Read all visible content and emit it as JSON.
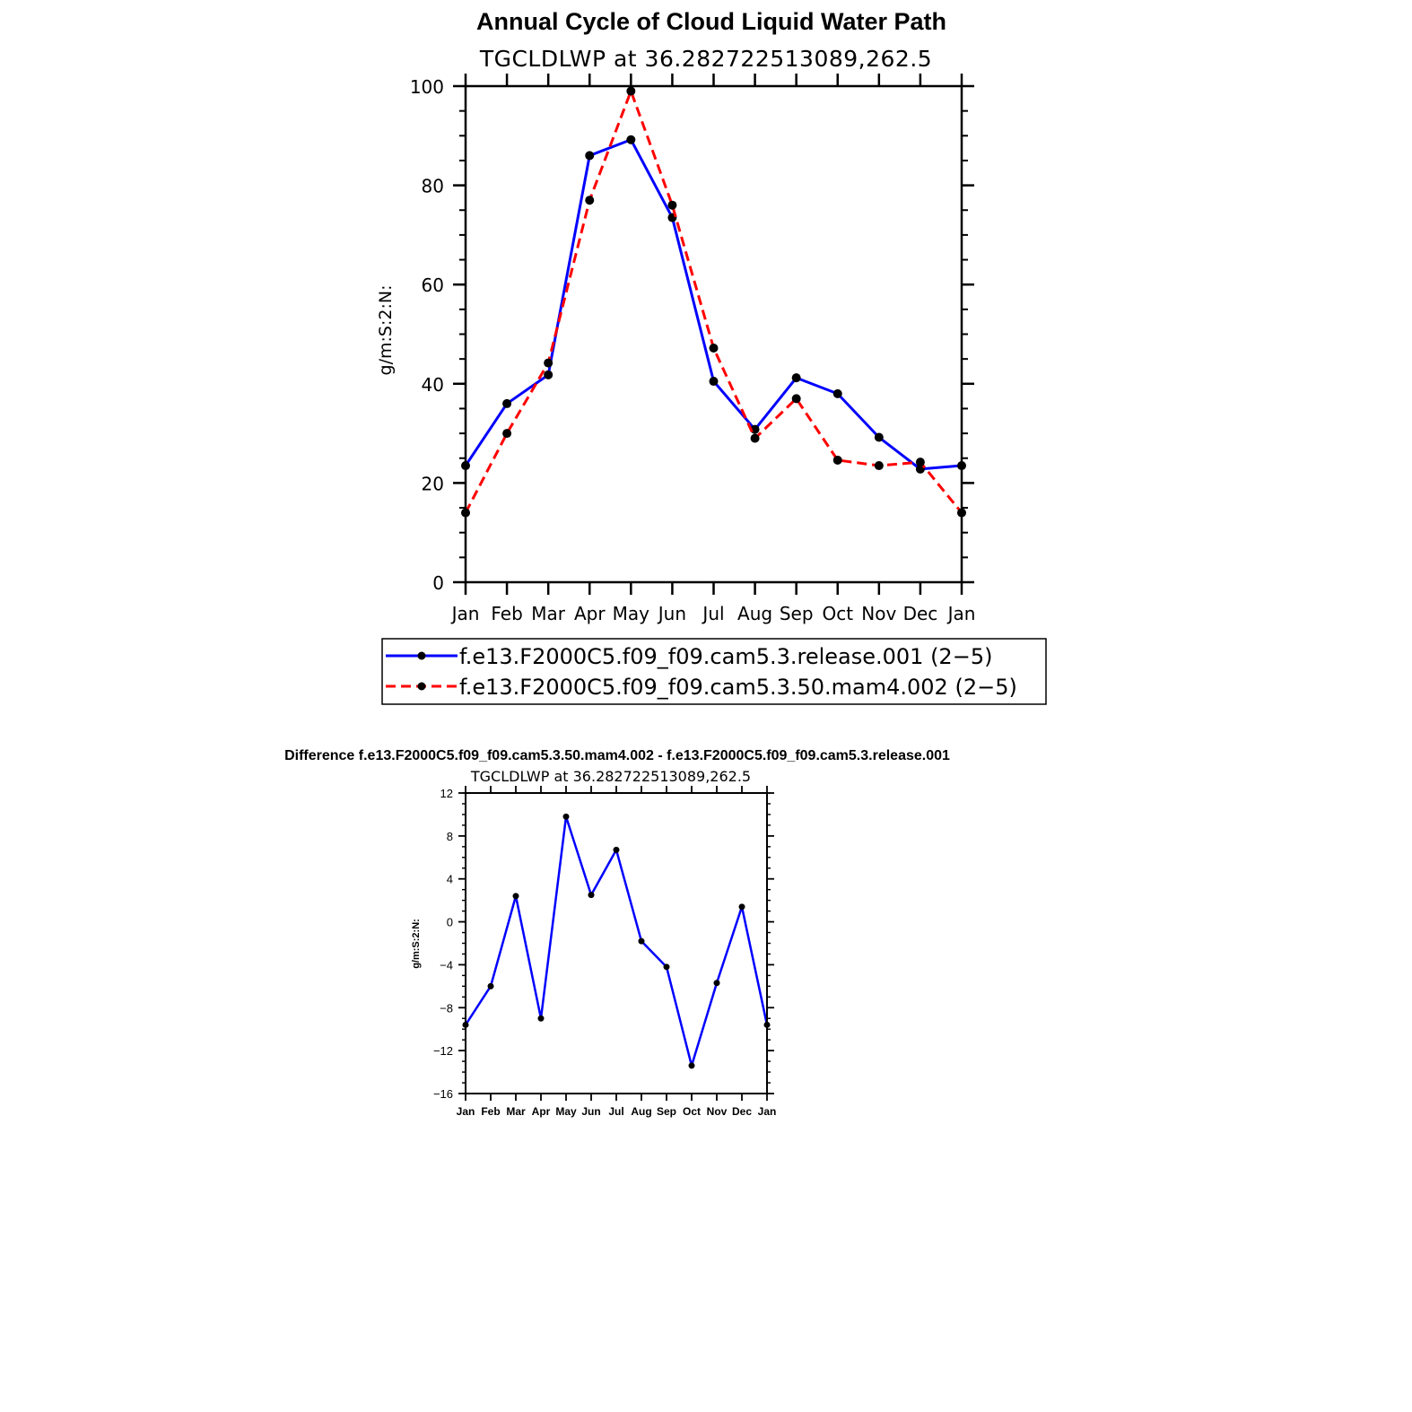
{
  "chart_data": [
    {
      "type": "line",
      "title": "Annual Cycle of Cloud Liquid Water Path",
      "subtitle": "TGCLDLWP  at  36.282722513089,262.5",
      "xlabel": "",
      "ylabel": "g/m:S:2:N:",
      "categories": [
        "Jan",
        "Feb",
        "Mar",
        "Apr",
        "May",
        "Jun",
        "Jul",
        "Aug",
        "Sep",
        "Oct",
        "Nov",
        "Dec",
        "Jan"
      ],
      "ylim": [
        0,
        100
      ],
      "yticks": [
        0,
        20,
        40,
        60,
        80,
        100
      ],
      "ytick_labels": [
        "0",
        "20",
        "40",
        "60",
        "80",
        "100"
      ],
      "grid": false,
      "legend_position": "bottom",
      "series": [
        {
          "name": "f.e13.F2000C5.f09_f09.cam5.3.release.001 (2−5)",
          "color": "#0000ff",
          "dash": "solid",
          "values": [
            23.5,
            36.0,
            41.8,
            86.0,
            89.2,
            73.5,
            40.5,
            30.8,
            41.2,
            38.0,
            29.2,
            22.8,
            23.5
          ]
        },
        {
          "name": "f.e13.F2000C5.f09_f09.cam5.3.50.mam4.002 (2−5)",
          "color": "#ff0000",
          "dash": "dashed",
          "values": [
            14.0,
            30.0,
            44.2,
            77.0,
            99.0,
            76.0,
            47.2,
            29.0,
            37.0,
            24.6,
            23.5,
            24.2,
            14.0
          ]
        }
      ]
    },
    {
      "type": "line",
      "title": "Difference f.e13.F2000C5.f09_f09.cam5.3.50.mam4.002 - f.e13.F2000C5.f09_f09.cam5.3.release.001",
      "subtitle": "TGCLDLWP  at  36.282722513089,262.5",
      "xlabel": "",
      "ylabel": "g/m:S:2:N:",
      "categories": [
        "Jan",
        "Feb",
        "Mar",
        "Apr",
        "May",
        "Jun",
        "Jul",
        "Aug",
        "Sep",
        "Oct",
        "Nov",
        "Dec",
        "Jan"
      ],
      "ylim": [
        -16,
        12
      ],
      "yticks": [
        -16,
        -12,
        -8,
        -4,
        0,
        4,
        8,
        12
      ],
      "ytick_labels": [
        "−16",
        "−12",
        "−8",
        "−4",
        "0",
        "4",
        "8",
        "12"
      ],
      "grid": false,
      "series": [
        {
          "color": "#0000ff",
          "dash": "solid",
          "values": [
            -9.6,
            -6.0,
            2.4,
            -9.0,
            9.8,
            2.5,
            6.7,
            -1.8,
            -4.2,
            -13.4,
            -5.7,
            1.4,
            -9.6
          ]
        }
      ]
    }
  ]
}
